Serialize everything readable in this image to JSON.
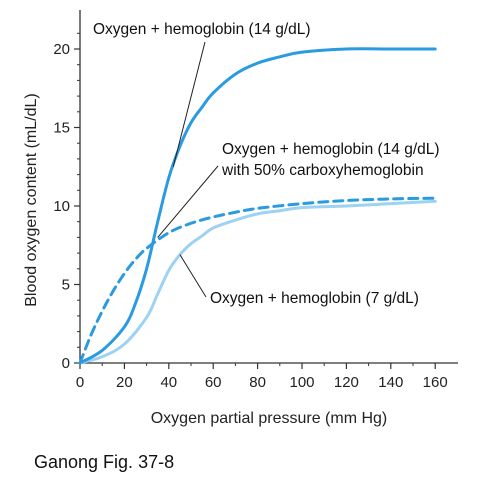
{
  "chart_data": {
    "type": "line",
    "title": "",
    "xlabel": "Oxygen partial pressure (mm Hg)",
    "ylabel": "Blood oxygen content (mL/dL)",
    "xlim": [
      0,
      165
    ],
    "ylim": [
      0,
      22
    ],
    "x_ticks": [
      0,
      20,
      40,
      60,
      80,
      100,
      120,
      140,
      160
    ],
    "y_ticks": [
      0,
      5,
      10,
      15,
      20
    ],
    "grid": false,
    "legend": "none",
    "series": [
      {
        "name": "Oxygen + hemoglobin (14 g/dL)",
        "style": "solid",
        "color": "#2a9be0",
        "x": [
          0,
          10,
          20,
          25,
          30,
          35,
          40,
          45,
          50,
          55,
          60,
          70,
          80,
          90,
          100,
          120,
          140,
          160
        ],
        "y": [
          0,
          0.8,
          2.3,
          3.8,
          6.0,
          9.0,
          11.8,
          13.8,
          15.3,
          16.3,
          17.2,
          18.4,
          19.1,
          19.5,
          19.8,
          20.0,
          20.0,
          20.0
        ]
      },
      {
        "name": "Oxygen + hemoglobin (14 g/dL) with 50% carboxyhemoglobin",
        "style": "dashed",
        "color": "#2a9be0",
        "x": [
          0,
          5,
          10,
          15,
          20,
          25,
          30,
          40,
          50,
          60,
          70,
          80,
          100,
          120,
          140,
          160
        ],
        "y": [
          0,
          1.8,
          3.3,
          4.6,
          5.7,
          6.6,
          7.3,
          8.3,
          8.9,
          9.3,
          9.6,
          9.85,
          10.15,
          10.35,
          10.45,
          10.5
        ]
      },
      {
        "name": "Oxygen + hemoglobin (7 g/dL)",
        "style": "solid",
        "color": "#9dd2f2",
        "x": [
          0,
          10,
          20,
          30,
          35,
          40,
          45,
          50,
          55,
          60,
          70,
          80,
          90,
          100,
          120,
          140,
          160
        ],
        "y": [
          0,
          0.4,
          1.2,
          2.9,
          4.4,
          5.9,
          6.9,
          7.6,
          8.1,
          8.6,
          9.1,
          9.5,
          9.7,
          9.9,
          10.0,
          10.15,
          10.3
        ]
      }
    ],
    "annotations": [
      {
        "id": "a1",
        "lines": [
          "Oxygen + hemoglobin (14 g/dL)"
        ],
        "series": 0,
        "point": [
          42,
          12.5
        ]
      },
      {
        "id": "a2",
        "lines": [
          "Oxygen + hemoglobin (14 g/dL)",
          "with 50% carboxyhemoglobin"
        ],
        "series": 1,
        "point": [
          35,
          8.0
        ]
      },
      {
        "id": "a3",
        "lines": [
          "Oxygen + hemoglobin (7 g/dL)"
        ],
        "series": 2,
        "point": [
          45,
          6.9
        ]
      }
    ]
  },
  "caption": "Ganong Fig. 37-8"
}
